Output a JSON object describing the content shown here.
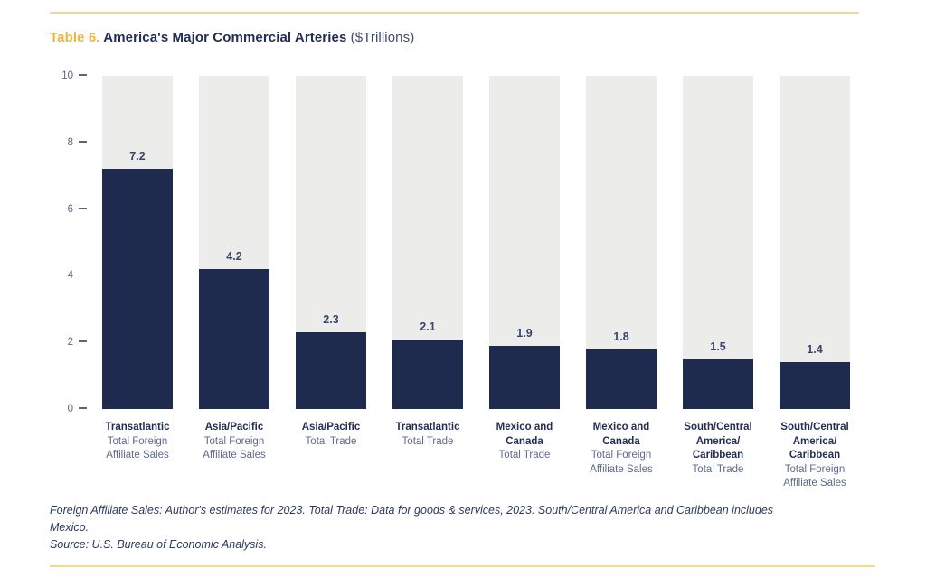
{
  "header": {
    "prefix": "Table 6.",
    "title": " America's Major Commercial Arteries",
    "units": " ($Trillions)"
  },
  "colors": {
    "navy": "#1e2a4e",
    "gold": "#f0b43e",
    "gold_line": "#f4d88f",
    "column_bg": "#ececea",
    "axis_text": "#5a6480",
    "title_navy": "#222d55",
    "units_text": "#3e4a6e",
    "label_text": "#242f56",
    "sublabel_text": "#5d6a8c",
    "value_text": "#39446a",
    "footnote_text": "#2d3a5f"
  },
  "chart_data": {
    "type": "bar",
    "title": "Table 6. America's Major Commercial Arteries",
    "units": "$Trillions",
    "categories": [
      "Transatlantic",
      "Asia/Pacific",
      "Asia/Pacific",
      "Transatlantic",
      "Mexico and Canada",
      "Mexico and Canada",
      "South/Central America/Caribbean",
      "South/Central America/Caribbean"
    ],
    "category_measures": [
      "Total Foreign Affiliate Sales",
      "Total Foreign Affiliate Sales",
      "Total Trade",
      "Total Trade",
      "Total Trade",
      "Total Foreign Affiliate Sales",
      "Total Trade",
      "Total Foreign Affiliate Sales"
    ],
    "values": [
      7.2,
      4.2,
      2.3,
      2.1,
      1.9,
      1.8,
      1.5,
      1.4
    ],
    "value_labels": [
      "7.2",
      "4.2",
      "2.3",
      "2.1",
      "1.9",
      "1.8",
      "1.5",
      "1.4"
    ],
    "ylim": [
      0,
      10
    ],
    "yticks": [
      0,
      2,
      4,
      6,
      8,
      10
    ],
    "grid": false,
    "legend": "none",
    "bars": [
      {
        "value_label": "7.2",
        "name_lines": [
          "Transatlantic"
        ],
        "sub_lines": [
          "Total Foreign",
          "Affiliate Sales"
        ]
      },
      {
        "value_label": "4.2",
        "name_lines": [
          "Asia/Pacific"
        ],
        "sub_lines": [
          "Total Foreign",
          "Affiliate Sales"
        ]
      },
      {
        "value_label": "2.3",
        "name_lines": [
          "Asia/Pacific"
        ],
        "sub_lines": [
          "Total Trade"
        ]
      },
      {
        "value_label": "2.1",
        "name_lines": [
          "Transatlantic"
        ],
        "sub_lines": [
          "Total Trade"
        ]
      },
      {
        "value_label": "1.9",
        "name_lines": [
          "Mexico and",
          "Canada"
        ],
        "sub_lines": [
          "Total Trade"
        ]
      },
      {
        "value_label": "1.8",
        "name_lines": [
          "Mexico and",
          "Canada"
        ],
        "sub_lines": [
          "Total Foreign",
          "Affiliate Sales"
        ]
      },
      {
        "value_label": "1.5",
        "name_lines": [
          "South/Central",
          "America/",
          "Caribbean"
        ],
        "sub_lines": [
          "Total Trade"
        ]
      },
      {
        "value_label": "1.4",
        "name_lines": [
          "South/Central",
          "America/",
          "Caribbean"
        ],
        "sub_lines": [
          "Total Foreign",
          "Affiliate Sales"
        ]
      }
    ]
  },
  "footnote": {
    "lines": [
      "Foreign Affiliate Sales: Author's estimates for 2023. Total Trade: Data for goods & services, 2023. South/Central America and Caribbean includes",
      "Mexico.",
      "Source: U.S. Bureau of Economic Analysis."
    ]
  }
}
